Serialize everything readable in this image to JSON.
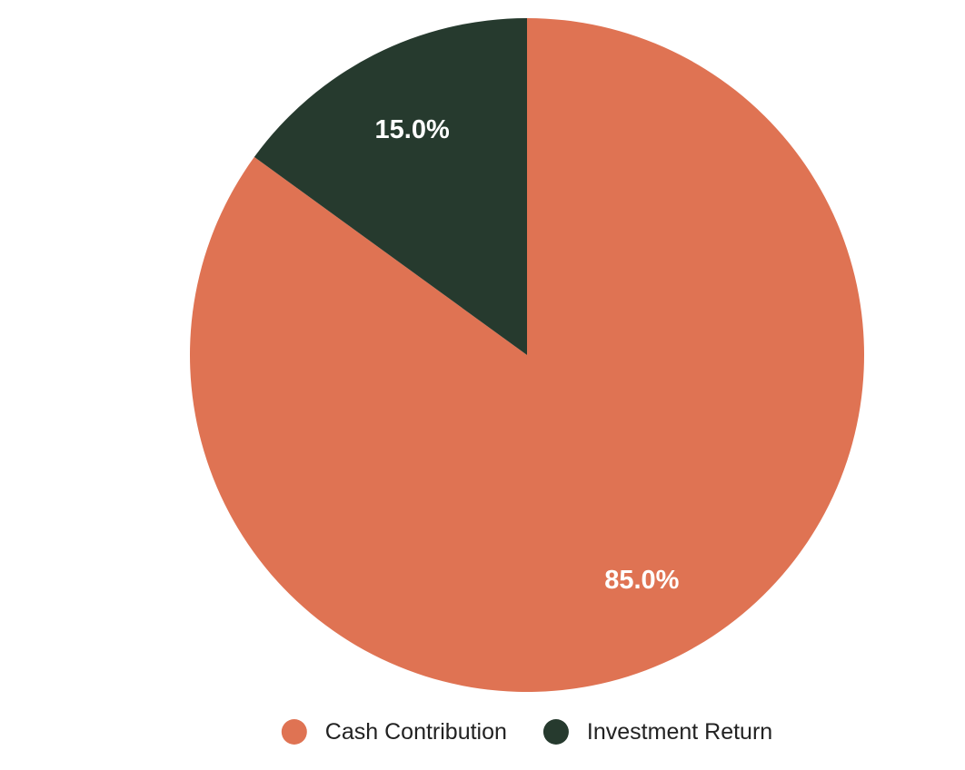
{
  "chart_data": {
    "type": "pie",
    "categories": [
      "Cash Contribution",
      "Investment Return"
    ],
    "values": [
      85,
      15
    ],
    "value_labels": [
      "85.0%",
      "15.0%"
    ],
    "colors": [
      "#df7353",
      "#263a2e"
    ],
    "start_angle": 0,
    "direction": "clockwise",
    "legend": "bottom"
  }
}
